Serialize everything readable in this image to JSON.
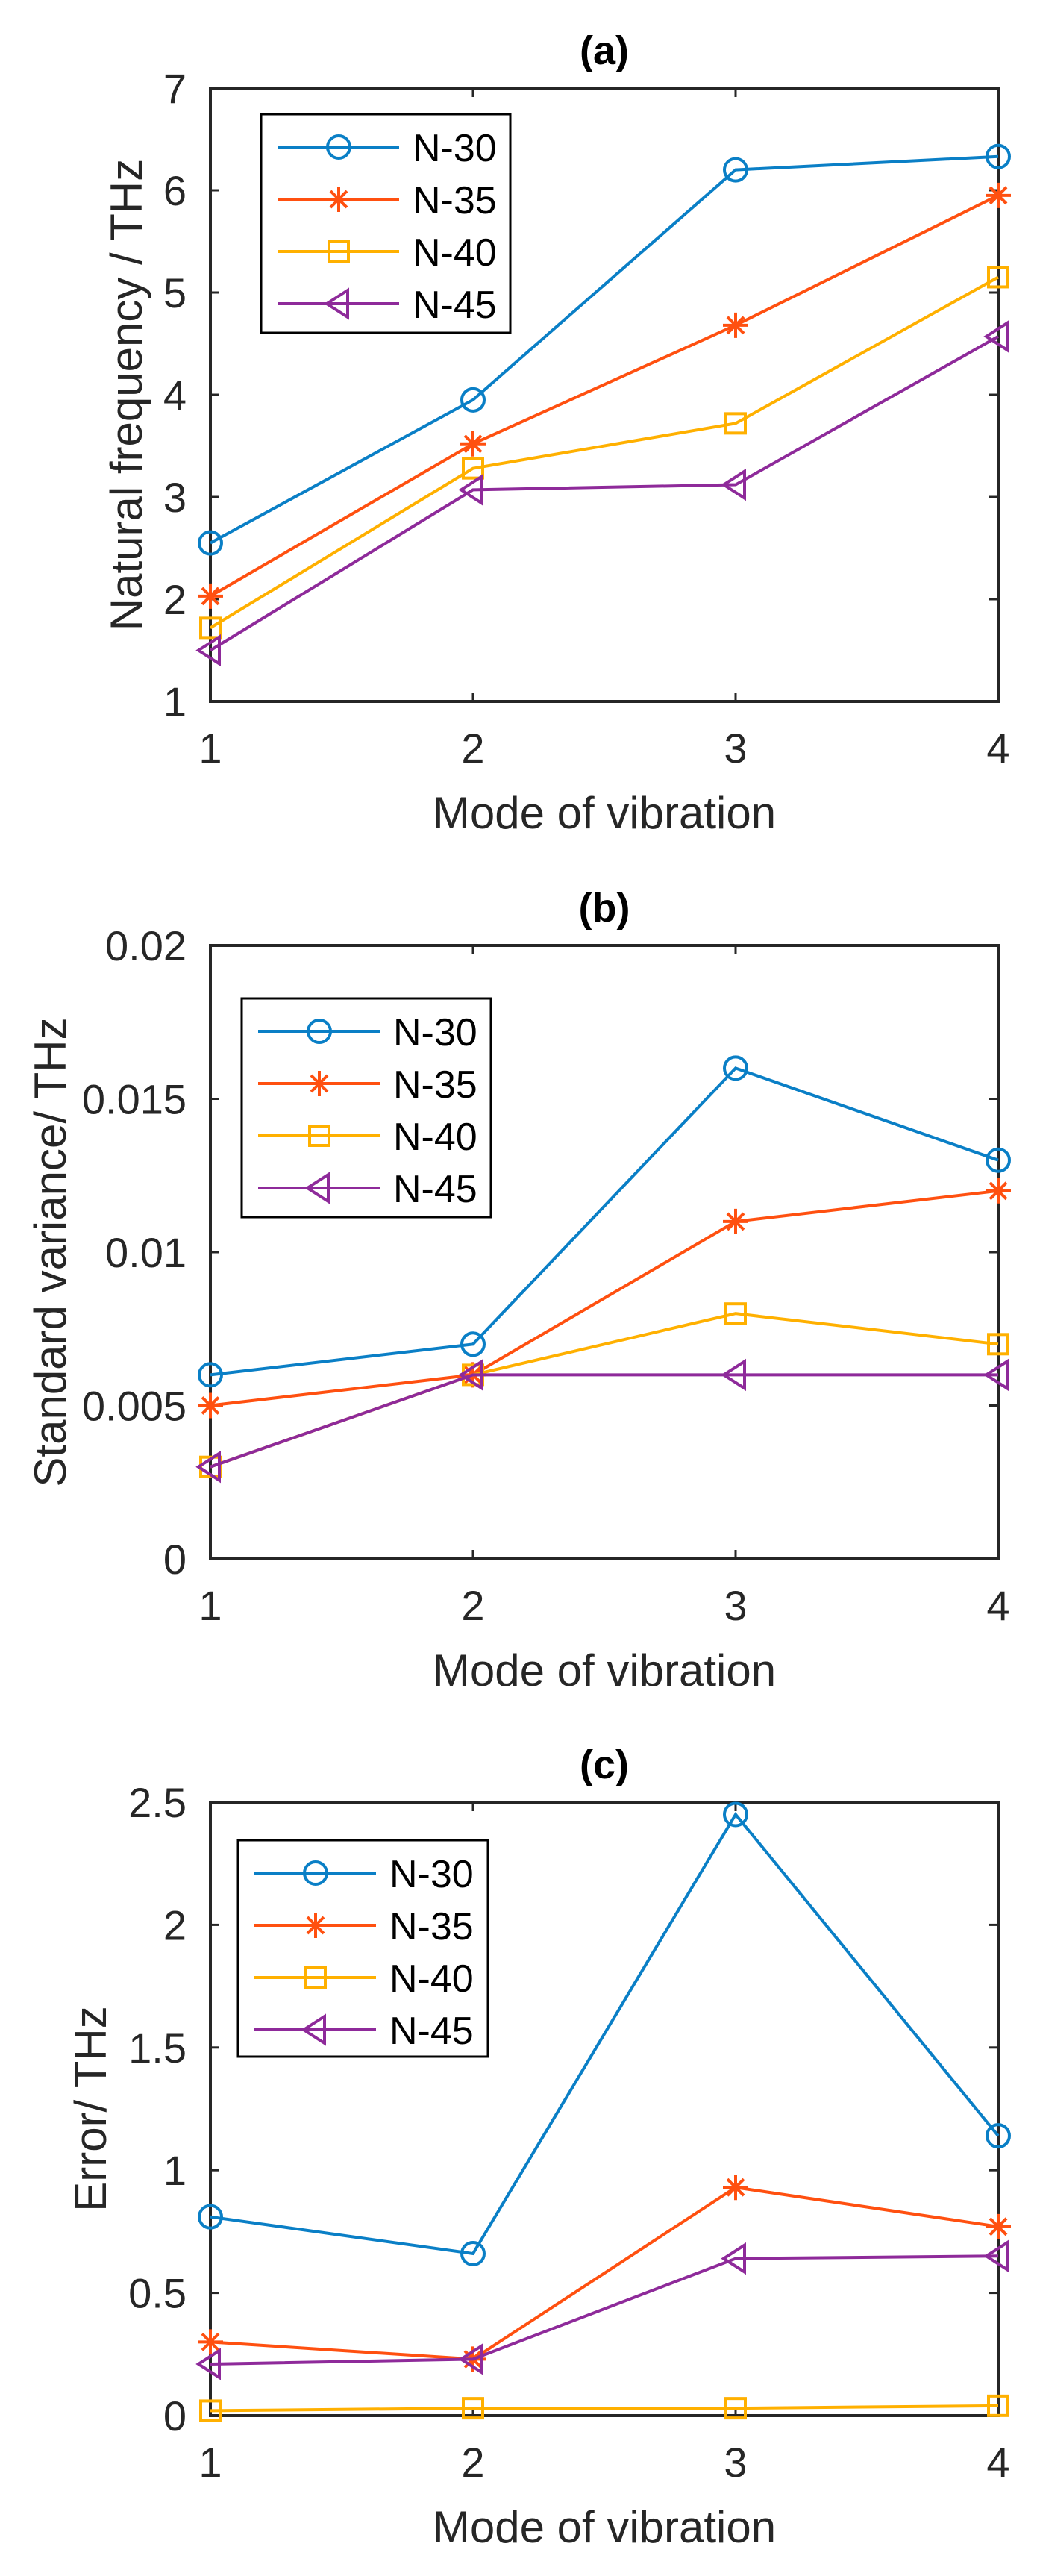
{
  "series_colors": {
    "N-30": "#0a7fc6",
    "N-35": "#ff5010",
    "N-40": "#ffb000",
    "N-45": "#8e2a9a"
  },
  "series_markers": {
    "N-30": "circle",
    "N-35": "asterisk",
    "N-40": "square",
    "N-45": "triangle-left"
  },
  "chart_data": [
    {
      "type": "line",
      "title": "(a)",
      "xlabel": "Mode of vibration",
      "ylabel": "Natural frequency / THz",
      "x": [
        1,
        2,
        3,
        4
      ],
      "xlim": [
        1,
        4
      ],
      "ylim": [
        1,
        7
      ],
      "xticks": [
        "1",
        "2",
        "3",
        "4"
      ],
      "yticks": [
        "1",
        "2",
        "3",
        "4",
        "5",
        "6",
        "7"
      ],
      "ytick_values": [
        1,
        2,
        3,
        4,
        5,
        6,
        7
      ],
      "grid": false,
      "legend_position": "top-left",
      "series": [
        {
          "name": "N-30",
          "values": [
            2.55,
            3.95,
            6.2,
            6.33
          ]
        },
        {
          "name": "N-35",
          "values": [
            2.03,
            3.52,
            4.68,
            5.95
          ]
        },
        {
          "name": "N-40",
          "values": [
            1.72,
            3.28,
            3.72,
            5.15
          ]
        },
        {
          "name": "N-45",
          "values": [
            1.5,
            3.07,
            3.12,
            4.57
          ]
        }
      ]
    },
    {
      "type": "line",
      "title": "(b)",
      "xlabel": "Mode of vibration",
      "ylabel": "Standard variance/ THz",
      "x": [
        1,
        2,
        3,
        4
      ],
      "xlim": [
        1,
        4
      ],
      "ylim": [
        0,
        0.02
      ],
      "xticks": [
        "1",
        "2",
        "3",
        "4"
      ],
      "yticks": [
        "0",
        "0.005",
        "0.01",
        "0.015",
        "0.02"
      ],
      "ytick_values": [
        0,
        0.005,
        0.01,
        0.015,
        0.02
      ],
      "grid": false,
      "legend_position": "top-left",
      "series": [
        {
          "name": "N-30",
          "values": [
            0.006,
            0.007,
            0.016,
            0.013
          ]
        },
        {
          "name": "N-35",
          "values": [
            0.005,
            0.006,
            0.011,
            0.012
          ]
        },
        {
          "name": "N-40",
          "values": [
            0.003,
            0.006,
            0.008,
            0.007
          ]
        },
        {
          "name": "N-45",
          "values": [
            0.003,
            0.006,
            0.006,
            0.006
          ]
        }
      ]
    },
    {
      "type": "line",
      "title": "(c)",
      "xlabel": "Mode of vibration",
      "ylabel": "Error/ THz",
      "x": [
        1,
        2,
        3,
        4
      ],
      "xlim": [
        1,
        4
      ],
      "ylim": [
        0,
        2.5
      ],
      "xticks": [
        "1",
        "2",
        "3",
        "4"
      ],
      "yticks": [
        "0",
        "0.5",
        "1",
        "1.5",
        "2",
        "2.5"
      ],
      "ytick_values": [
        0,
        0.5,
        1,
        1.5,
        2,
        2.5
      ],
      "grid": false,
      "legend_position": "top-left",
      "series": [
        {
          "name": "N-30",
          "values": [
            0.81,
            0.66,
            2.45,
            1.14
          ]
        },
        {
          "name": "N-35",
          "values": [
            0.3,
            0.23,
            0.93,
            0.77
          ]
        },
        {
          "name": "N-40",
          "values": [
            0.02,
            0.03,
            0.03,
            0.04
          ]
        },
        {
          "name": "N-45",
          "values": [
            0.21,
            0.23,
            0.64,
            0.65
          ]
        }
      ]
    }
  ]
}
